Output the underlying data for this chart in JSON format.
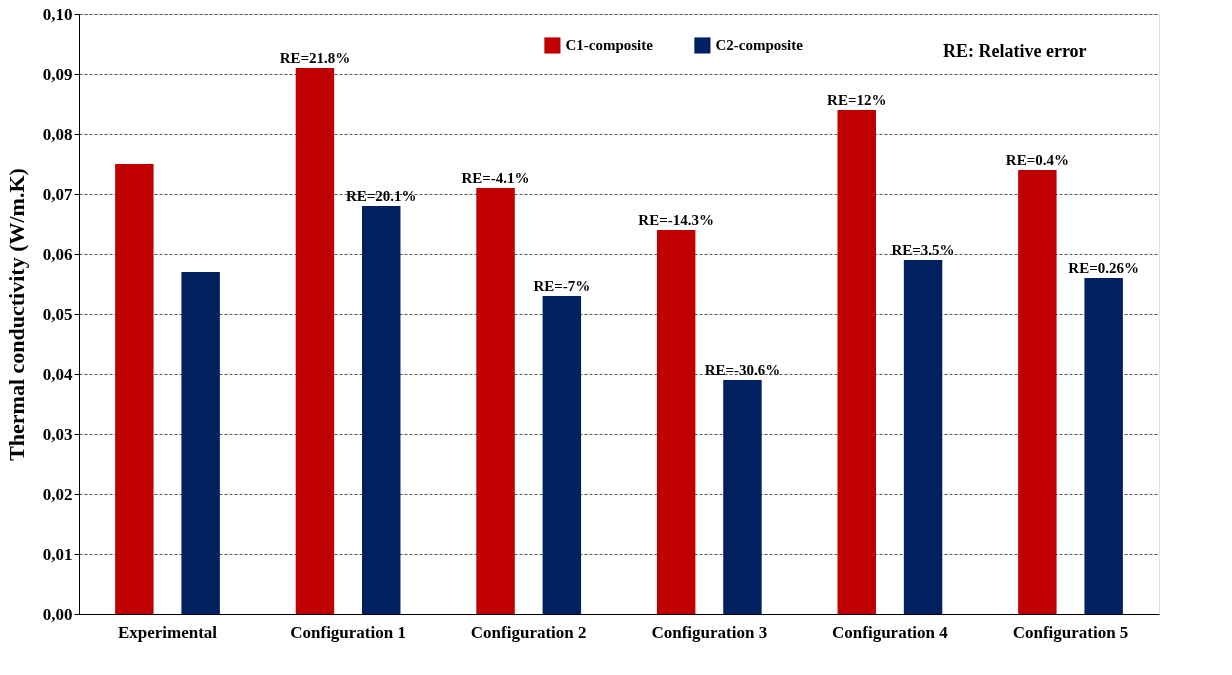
{
  "chart_data": {
    "type": "bar",
    "ylabel": "Thermal conductivity (W/m.K)",
    "categories": [
      "Experimental",
      "Configuration 1",
      "Configuration 2",
      "Configuration 3",
      "Configuration 4",
      "Configuration 5"
    ],
    "series": [
      {
        "name": "C1-composite",
        "color": "#c00000",
        "values": [
          0.075,
          0.091,
          0.071,
          0.064,
          0.084,
          0.074
        ]
      },
      {
        "name": "C2-composite",
        "color": "#002060",
        "values": [
          0.057,
          0.068,
          0.053,
          0.039,
          0.059,
          0.056
        ]
      }
    ],
    "ylim": [
      0,
      0.1
    ],
    "yticks": [
      {
        "value": 0,
        "label": "0,00"
      },
      {
        "value": 0.01,
        "label": "0,01"
      },
      {
        "value": 0.02,
        "label": "0,02"
      },
      {
        "value": 0.03,
        "label": "0,03"
      },
      {
        "value": 0.04,
        "label": "0,04"
      },
      {
        "value": 0.05,
        "label": "0,05"
      },
      {
        "value": 0.06,
        "label": "0,06"
      },
      {
        "value": 0.07,
        "label": "0,07"
      },
      {
        "value": 0.08,
        "label": "0,08"
      },
      {
        "value": 0.09,
        "label": "0,09"
      },
      {
        "value": 0.1,
        "label": "0,10"
      }
    ],
    "grid": "y",
    "legend": "top",
    "annotations": [
      "RE: Relative error",
      "RE=21.8%",
      "RE=20.1%",
      "RE=-4.1%",
      "RE=-7%",
      "RE=-14.3%",
      "RE=-30.6%",
      "RE=12%",
      "RE=3.5%",
      "RE=0.4%",
      "RE=0.26%"
    ]
  }
}
